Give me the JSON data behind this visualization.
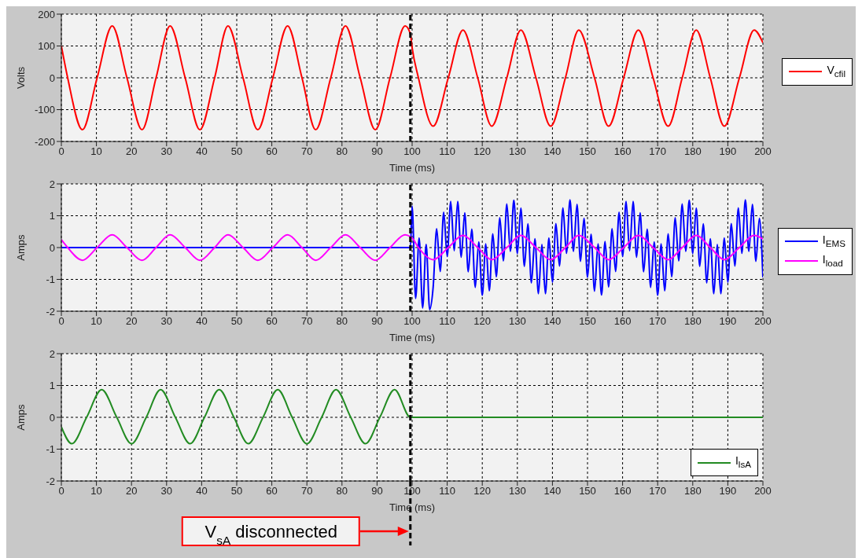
{
  "chart_data": [
    {
      "type": "line",
      "xlabel": "Time (ms)",
      "ylabel": "Volts",
      "xlim": [
        0,
        200
      ],
      "xticks": [
        0,
        10,
        20,
        30,
        40,
        50,
        60,
        70,
        80,
        90,
        100,
        110,
        120,
        130,
        140,
        150,
        160,
        170,
        180,
        190,
        200
      ],
      "ylim": [
        -200,
        200
      ],
      "yticks": [
        -200,
        -100,
        0,
        100,
        200
      ],
      "grid": true,
      "legend": "right",
      "series": [
        {
          "name": "V$_{cfil}$",
          "color": "#ff0000",
          "x": [
            0,
            1.8,
            6,
            10.2,
            14.5,
            18.7,
            23,
            27,
            31,
            35.3,
            39.5,
            43.7,
            47.5,
            51.8,
            56,
            60.3,
            64.5,
            68.6,
            72.5,
            76.8,
            81,
            85.2,
            89.5,
            93.7,
            98,
            99.5,
            100,
            101.8,
            106,
            110.3,
            114.5,
            118.7,
            122.7,
            127,
            131,
            135.3,
            139.5,
            143.7,
            147.5,
            152,
            156,
            160.3,
            164.5,
            168.7,
            173,
            177,
            181,
            185,
            189,
            193.3,
            197.5,
            200
          ],
          "values": [
            100,
            0,
            -163,
            0,
            163,
            0,
            -163,
            0,
            163,
            0,
            -163,
            0,
            163,
            0,
            -163,
            0,
            163,
            0,
            -163,
            0,
            163,
            0,
            -163,
            0,
            163,
            138,
            95,
            0,
            -152,
            0,
            150,
            0,
            -152,
            0,
            150,
            0,
            -152,
            0,
            150,
            0,
            -152,
            0,
            150,
            0,
            -152,
            0,
            150,
            0,
            -152,
            0,
            150,
            110
          ]
        }
      ],
      "ref_lines": [
        {
          "axis": "x",
          "value": 99.5,
          "color": "#000000",
          "line_style": "dashed"
        }
      ]
    },
    {
      "type": "line",
      "xlabel": "Time (ms)",
      "ylabel": "Amps",
      "xlim": [
        0,
        200
      ],
      "xticks": [
        0,
        10,
        20,
        30,
        40,
        50,
        60,
        70,
        80,
        90,
        100,
        110,
        120,
        130,
        140,
        150,
        160,
        170,
        180,
        190,
        200
      ],
      "ylim": [
        -2,
        2
      ],
      "yticks": [
        -2,
        -1,
        0,
        1,
        2
      ],
      "grid": true,
      "legend": "right",
      "series": [
        {
          "name": "I$_{EMS}$",
          "color": "#0000ff",
          "x": [
            0,
            99.5,
            100,
            101,
            102,
            103,
            104,
            105,
            106,
            107,
            108,
            109,
            110,
            111,
            112,
            113,
            114,
            115,
            116,
            117,
            118,
            119,
            120,
            121,
            122,
            123,
            124,
            125,
            126,
            127,
            128,
            129,
            130,
            131,
            132,
            133,
            134,
            135,
            136,
            137,
            138,
            139,
            140,
            141,
            142,
            143,
            144,
            145,
            146,
            147,
            148,
            149,
            150,
            151,
            152,
            153,
            154,
            155,
            156,
            157,
            158,
            159,
            160,
            161,
            162,
            163,
            164,
            165,
            166,
            167,
            168,
            169,
            170,
            171,
            172,
            173,
            174,
            175,
            176,
            177,
            178,
            179,
            180,
            181,
            182,
            183,
            184,
            185,
            186,
            187,
            188,
            189,
            190,
            191,
            192,
            193,
            194,
            195,
            196,
            197,
            198,
            199,
            200
          ],
          "values": [
            0,
            0,
            1.3,
            -1.6,
            0.3,
            -1.9,
            0.1,
            -1.95,
            -1.24,
            0.59,
            -0.75,
            1.11,
            -0.28,
            1.45,
            -0.1,
            1.45,
            -0.3,
            1.09,
            -0.76,
            0.58,
            -1.25,
            0.18,
            -1.5,
            0.12,
            -1.36,
            0.43,
            -0.92,
            0.94,
            -0.42,
            1.37,
            -0.12,
            1.49,
            -0.19,
            1.24,
            -0.59,
            0.75,
            -1.11,
            0.28,
            -1.45,
            0.1,
            -1.45,
            0.3,
            -1.09,
            0.75,
            -0.58,
            1.25,
            -0.18,
            1.5,
            -0.12,
            1.36,
            -0.43,
            0.92,
            -0.94,
            0.42,
            -1.37,
            0.12,
            -1.49,
            0.19,
            -1.24,
            0.59,
            -0.75,
            1.11,
            -0.28,
            1.45,
            -0.1,
            1.45,
            -0.3,
            1.09,
            -0.76,
            0.58,
            -1.25,
            0.18,
            -1.5,
            0.12,
            -1.36,
            0.43,
            -0.92,
            0.94,
            -0.42,
            1.37,
            -0.12,
            1.49,
            -0.19,
            1.24,
            -0.59,
            0.75,
            -1.11,
            0.28,
            -1.45,
            0.1,
            -1.45,
            0.3,
            -1.09,
            0.75,
            -0.58,
            1.25,
            -0.18,
            1.5,
            -0.12,
            1.36,
            -0.43,
            0.92,
            -0.94
          ]
        },
        {
          "name": "I$_{load}$",
          "color": "#ff00ff",
          "x": [
            0,
            1.8,
            6,
            10.2,
            14.5,
            18.7,
            23,
            27,
            31,
            35.3,
            39.5,
            43.7,
            47.5,
            51.8,
            56,
            60.3,
            64.5,
            68.6,
            72.5,
            76.8,
            81,
            85.2,
            89.5,
            93.7,
            98,
            99.5,
            100,
            101.8,
            106,
            110.3,
            114.5,
            118.7,
            122.7,
            127,
            131,
            135.3,
            139.5,
            143.7,
            147.5,
            152,
            156,
            160.3,
            164.5,
            168.7,
            173,
            177,
            181,
            185,
            189,
            193.3,
            197.5,
            200
          ],
          "values": [
            0.25,
            0,
            -0.4,
            0,
            0.4,
            0,
            -0.4,
            0,
            0.4,
            0,
            -0.4,
            0,
            0.4,
            0,
            -0.4,
            0,
            0.4,
            0,
            -0.4,
            0,
            0.4,
            0,
            -0.4,
            0,
            0.4,
            0.34,
            0.3,
            0,
            -0.38,
            0,
            0.38,
            0,
            -0.38,
            0,
            0.38,
            0,
            -0.38,
            0,
            0.38,
            0,
            -0.38,
            0,
            0.38,
            0,
            -0.38,
            0,
            0.38,
            0,
            -0.38,
            0,
            0.38,
            0.27
          ]
        }
      ],
      "ref_lines": [
        {
          "axis": "x",
          "value": 99.5,
          "color": "#000000",
          "line_style": "dashed"
        }
      ]
    },
    {
      "type": "line",
      "xlabel": "Time (ms)",
      "ylabel": "Amps",
      "xlim": [
        0,
        200
      ],
      "xticks": [
        0,
        10,
        20,
        30,
        40,
        50,
        60,
        70,
        80,
        90,
        100,
        110,
        120,
        130,
        140,
        150,
        160,
        170,
        180,
        190,
        200
      ],
      "ylim": [
        -2,
        2
      ],
      "yticks": [
        -2,
        -1,
        0,
        1,
        2
      ],
      "grid": true,
      "legend": "bottom right",
      "series": [
        {
          "name": "I$_{lsA}$",
          "color": "#228b22",
          "x": [
            0,
            3,
            7.2,
            11.5,
            15.8,
            20,
            24.2,
            28.3,
            32.5,
            36.7,
            40.8,
            45,
            49.2,
            53.3,
            57.5,
            61.7,
            65.8,
            70,
            74.2,
            78.3,
            82.5,
            86.7,
            90.8,
            95,
            99.5,
            200
          ],
          "values": [
            -0.3,
            -0.83,
            0,
            0.87,
            0,
            -0.83,
            0,
            0.87,
            0,
            -0.83,
            0,
            0.87,
            0,
            -0.83,
            0,
            0.87,
            0,
            -0.83,
            0,
            0.87,
            0,
            -0.83,
            0,
            0.87,
            0,
            0
          ]
        }
      ],
      "ref_lines": [
        {
          "axis": "x",
          "value": 99.5,
          "color": "#000000",
          "line_style": "dashed",
          "label": "V$_{sA}$ disconnected"
        }
      ]
    }
  ]
}
